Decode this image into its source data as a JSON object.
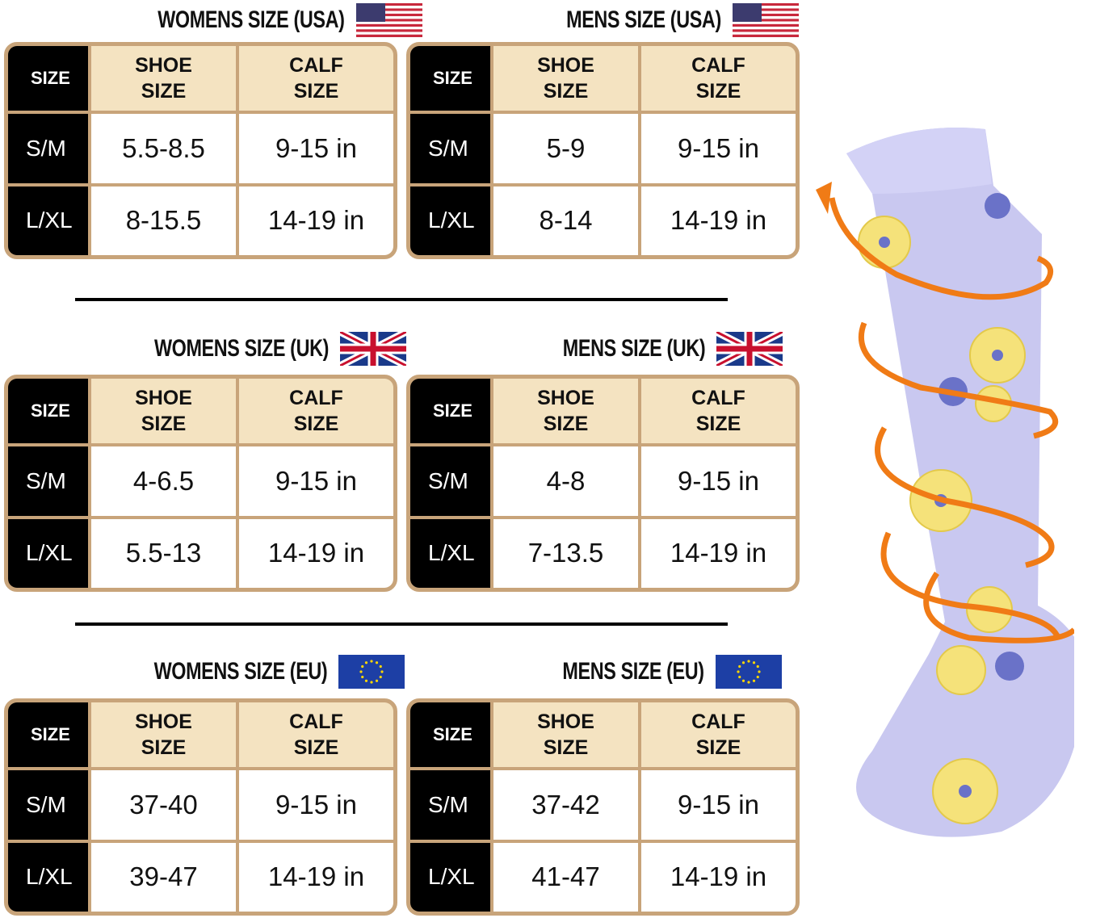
{
  "tables": [
    {
      "title": "WOMENS SIZE (USA)",
      "header": [
        "SIZE",
        "SHOE SIZE",
        "CALF SIZE"
      ],
      "rows": [
        [
          "S/M",
          "5.5-8.5",
          "9-15 in"
        ],
        [
          "L/XL",
          "8-15.5",
          "14-19 in"
        ]
      ]
    },
    {
      "title": "MENS SIZE (USA)",
      "header": [
        "SIZE",
        "SHOE SIZE",
        "CALF SIZE"
      ],
      "rows": [
        [
          "S/M",
          "5-9",
          "9-15 in"
        ],
        [
          "L/XL",
          "8-14",
          "14-19 in"
        ]
      ]
    },
    {
      "title": "WOMENS SIZE (UK)",
      "header": [
        "SIZE",
        "SHOE SIZE",
        "CALF SIZE"
      ],
      "rows": [
        [
          "S/M",
          "4-6.5",
          "9-15 in"
        ],
        [
          "L/XL",
          "5.5-13",
          "14-19 in"
        ]
      ]
    },
    {
      "title": "MENS SIZE (UK)",
      "header": [
        "SIZE",
        "SHOE SIZE",
        "CALF SIZE"
      ],
      "rows": [
        [
          "S/M",
          "4-8",
          "9-15 in"
        ],
        [
          "L/XL",
          "7-13.5",
          "14-19 in"
        ]
      ]
    },
    {
      "title": "WOMENS SIZE (EU)",
      "header": [
        "SIZE",
        "SHOE SIZE",
        "CALF SIZE"
      ],
      "rows": [
        [
          "S/M",
          "37-40",
          "9-15 in"
        ],
        [
          "L/XL",
          "39-47",
          "14-19 in"
        ]
      ]
    },
    {
      "title": "MENS SIZE (EU)",
      "header": [
        "SIZE",
        "SHOE SIZE",
        "CALF SIZE"
      ],
      "rows": [
        [
          "S/M",
          "37-42",
          "9-15 in"
        ],
        [
          "L/XL",
          "41-47",
          "14-19 in"
        ]
      ]
    }
  ]
}
